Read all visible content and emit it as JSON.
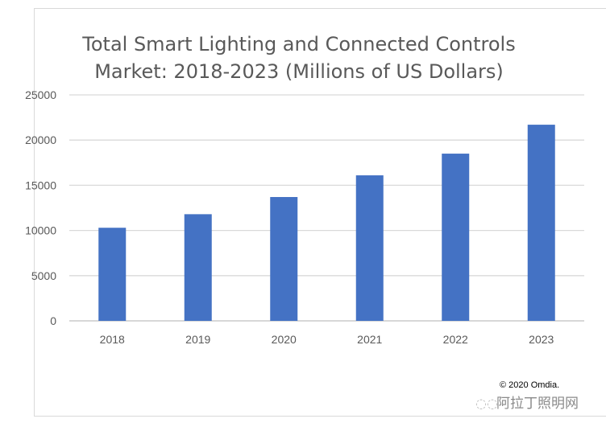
{
  "chart_data": {
    "type": "bar",
    "title": [
      "Total Smart Lighting and Connected Controls",
      "Market: 2018-2023 (Millions of US Dollars)"
    ],
    "categories": [
      "2018",
      "2019",
      "2020",
      "2021",
      "2022",
      "2023"
    ],
    "values": [
      10300,
      11800,
      13700,
      16100,
      18500,
      21700
    ],
    "ylim": [
      0,
      25000
    ],
    "yticks": [
      0,
      5000,
      10000,
      15000,
      20000,
      25000
    ],
    "grid": true,
    "bar_color": "#4472c4",
    "xlabel": "",
    "ylabel": ""
  },
  "credit": "© 2020 Omdia.",
  "watermark": {
    "text": "阿拉丁照明网",
    "icon": "wechat-icon"
  }
}
